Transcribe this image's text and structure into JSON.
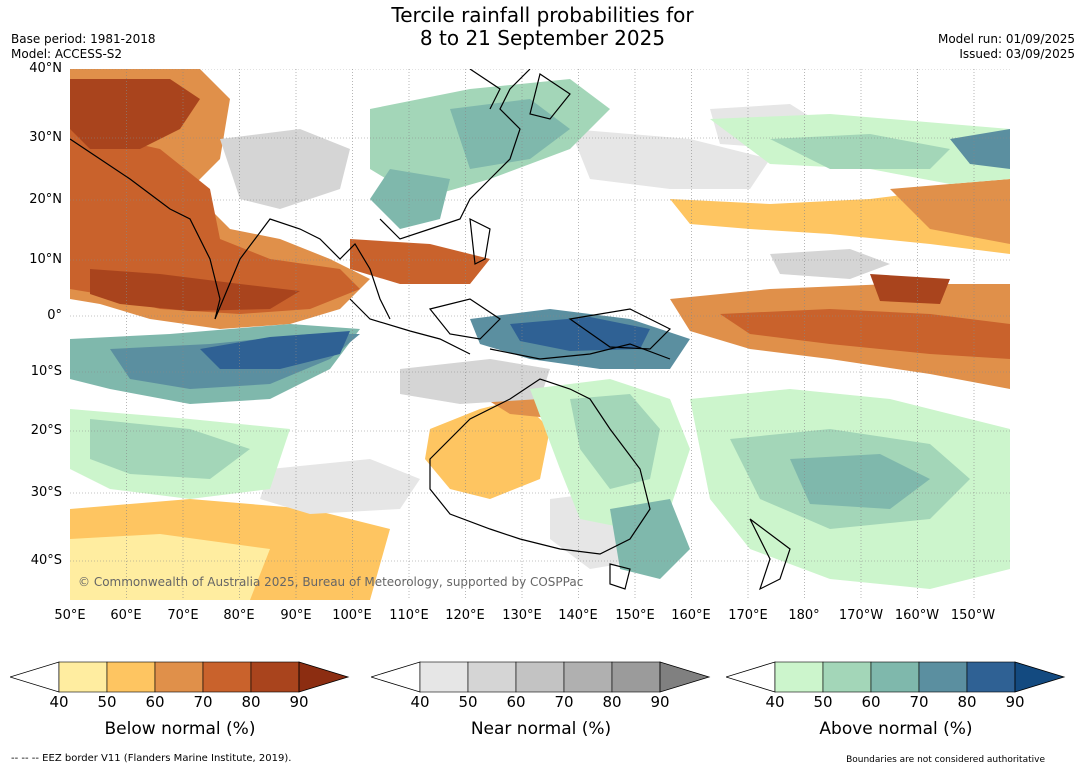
{
  "header": {
    "title_line1": "Tercile rainfall probabilities for",
    "title_line2": "8 to 21 September 2025",
    "base_period": "Base period: 1981-2018",
    "model": "Model: ACCESS-S2",
    "model_run": "Model run: 01/09/2025",
    "issued": "Issued: 03/09/2025"
  },
  "map": {
    "copyright": "© Commonwealth of Australia 2025, Bureau of Meteorology, supported by COSPPac",
    "lat_labels": [
      "40°N",
      "30°N",
      "20°N",
      "10°N",
      "0°",
      "10°S",
      "20°S",
      "30°S",
      "40°S"
    ],
    "lon_labels": [
      "50°E",
      "60°E",
      "70°E",
      "80°E",
      "90°E",
      "100°E",
      "110°E",
      "120°E",
      "130°E",
      "140°E",
      "150°E",
      "160°E",
      "170°E",
      "180°",
      "170°W",
      "160°W",
      "150°W"
    ],
    "ocean_color": "#ffffff",
    "coastline_color": "#000000"
  },
  "colorbars": [
    {
      "name": "below",
      "label": "Below normal (%)",
      "ticks": [
        "40",
        "50",
        "60",
        "70",
        "80",
        "90"
      ],
      "colors": [
        "#ffeda0",
        "#fec561",
        "#e0904a",
        "#c9622c",
        "#a9441d",
        "#8c2d11"
      ]
    },
    {
      "name": "near",
      "label": "Near normal (%)",
      "ticks": [
        "40",
        "50",
        "60",
        "70",
        "80",
        "90"
      ],
      "colors": [
        "#e6e6e6",
        "#d5d5d5",
        "#c3c3c3",
        "#b0b0b0",
        "#9b9b9b",
        "#808080"
      ]
    },
    {
      "name": "above",
      "label": "Above normal (%)",
      "ticks": [
        "40",
        "50",
        "60",
        "70",
        "80",
        "90"
      ],
      "colors": [
        "#ccf5cc",
        "#a3d6b8",
        "#7fb8ac",
        "#5b8fa0",
        "#2f6194",
        "#134a80"
      ]
    }
  ],
  "footer": {
    "eez": "--  --  -- EEZ border V11 (Flanders Marine Institute, 2019).",
    "disclaimer": "Boundaries are not considered authoritative"
  }
}
